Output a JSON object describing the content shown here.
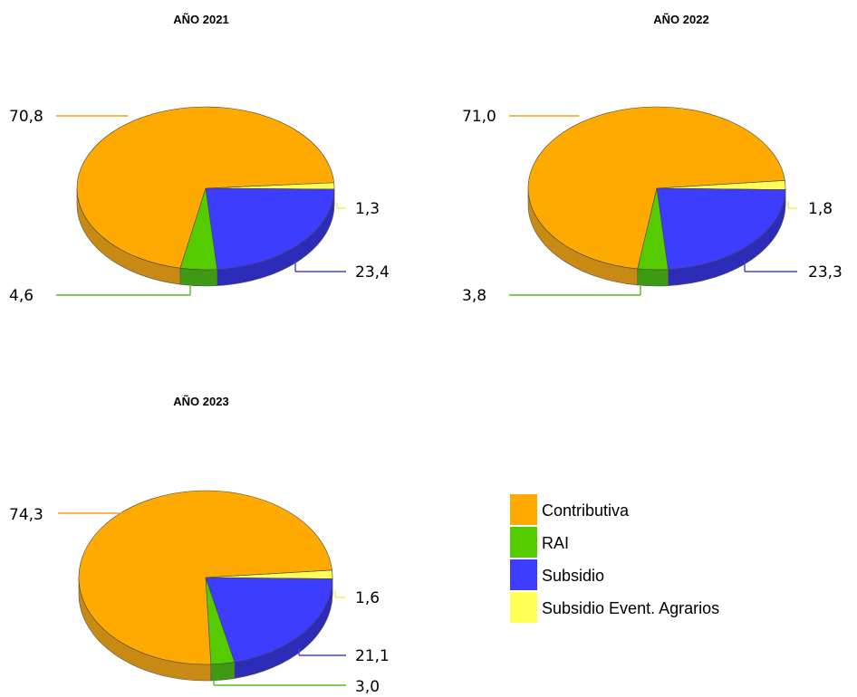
{
  "chart_data": [
    {
      "type": "pie",
      "title": "AÑO 2021",
      "slices": [
        {
          "label": "Contributiva",
          "value": 70.8,
          "value_label": "70,8"
        },
        {
          "label": "RAI",
          "value": 4.6,
          "value_label": "4,6"
        },
        {
          "label": "Subsidio",
          "value": 23.4,
          "value_label": "23,4"
        },
        {
          "label": "Subsidio Event. Agrarios",
          "value": 1.3,
          "value_label": "1,3"
        }
      ]
    },
    {
      "type": "pie",
      "title": "AÑO 2022",
      "slices": [
        {
          "label": "Contributiva",
          "value": 71.0,
          "value_label": "71,0"
        },
        {
          "label": "RAI",
          "value": 3.8,
          "value_label": "3,8"
        },
        {
          "label": "Subsidio",
          "value": 23.3,
          "value_label": "23,3"
        },
        {
          "label": "Subsidio Event. Agrarios",
          "value": 1.8,
          "value_label": "1,8"
        }
      ]
    },
    {
      "type": "pie",
      "title": "AÑO 2023",
      "slices": [
        {
          "label": "Contributiva",
          "value": 74.3,
          "value_label": "74,3"
        },
        {
          "label": "RAI",
          "value": 3.0,
          "value_label": "3,0"
        },
        {
          "label": "Subsidio",
          "value": 21.1,
          "value_label": "21,1"
        },
        {
          "label": "Subsidio Event. Agrarios",
          "value": 1.6,
          "value_label": "1,6"
        }
      ]
    }
  ],
  "legend": {
    "position": "bottom-right",
    "items": [
      {
        "label": "Contributiva",
        "color": "#FFAA00"
      },
      {
        "label": "RAI",
        "color": "#55CC00"
      },
      {
        "label": "Subsidio",
        "color": "#3D3DFF"
      },
      {
        "label": "Subsidio Event. Agrarios",
        "color": "#FFFF55"
      }
    ]
  },
  "colors": {
    "Contributiva": {
      "top": "#FFAA00",
      "side": "#C88A12",
      "line": "#F0A020"
    },
    "RAI": {
      "top": "#55CC00",
      "side": "#3E9A12",
      "line": "#55BB22"
    },
    "Subsidio": {
      "top": "#3D3DFF",
      "side": "#2C2CB8",
      "line": "#4444DD"
    },
    "Subsidio Event. Agrarios": {
      "top": "#FFFF55",
      "side": "#C8C83A",
      "line": "#EEEE55"
    }
  }
}
